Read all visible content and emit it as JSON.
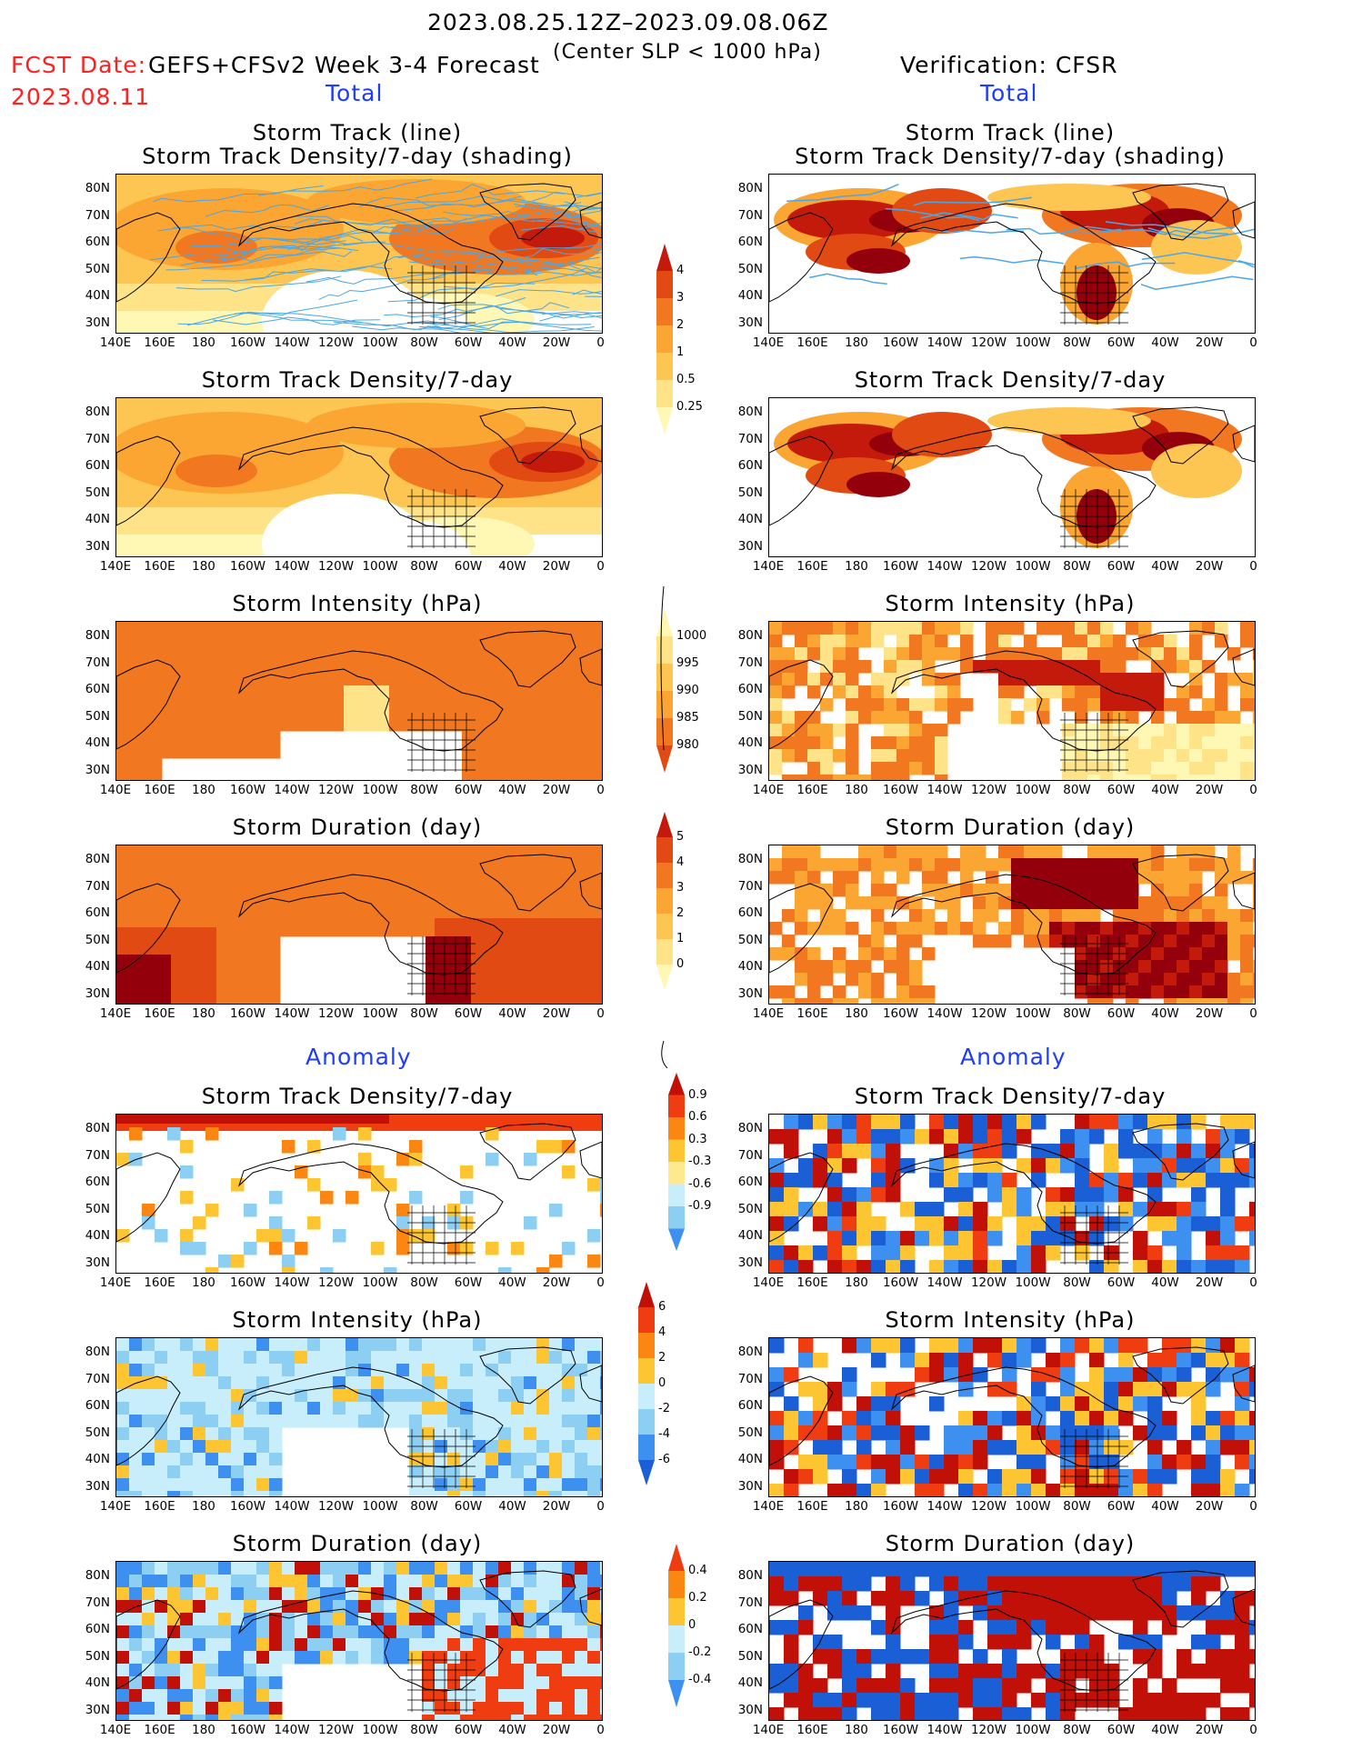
{
  "header": {
    "date_range": "2023.08.25.12Z–2023.09.08.06Z",
    "fcst_label": "FCST Date:",
    "fcst_date": "2023.08.11",
    "model": "GEFS+CFSv2 Week 3-4 Forecast",
    "criterion": "(Center SLP < 1000 hPa)",
    "verification": "Verification: CFSR"
  },
  "sections": {
    "total": "Total",
    "anomaly": "Anomaly"
  },
  "titles": {
    "track_line": "Storm Track (line)",
    "track_density_shading": "Storm Track Density/7-day (shading)",
    "track_density": "Storm Track Density/7-day",
    "intensity": "Storm Intensity (hPa)",
    "duration": "Storm Duration (day)"
  },
  "axes": {
    "lat_labels": [
      "80N",
      "70N",
      "60N",
      "50N",
      "40N",
      "30N"
    ],
    "lon_labels": [
      "140E",
      "160E",
      "180",
      "160W",
      "140W",
      "120W",
      "100W",
      "80W",
      "60W",
      "40W",
      "20W",
      "0"
    ]
  },
  "colorbars": {
    "density_total": [
      "4",
      "3",
      "2",
      "1",
      "0.5",
      "0.25"
    ],
    "intensity_total": [
      "1000",
      "995",
      "990",
      "985",
      "980"
    ],
    "duration_total": [
      "5",
      "4",
      "3",
      "2",
      "1",
      "0"
    ],
    "density_anom": [
      "0.9",
      "0.6",
      "0.3",
      "-0.3",
      "-0.6",
      "-0.9"
    ],
    "intensity_anom": [
      "6",
      "4",
      "2",
      "0",
      "-2",
      "-4",
      "-6"
    ],
    "duration_anom": [
      "0.4",
      "0.2",
      "0",
      "-0.2",
      "-0.4"
    ]
  },
  "colors": {
    "total_scale": [
      "#fff7b4",
      "#ffe389",
      "#fdc653",
      "#fba532",
      "#f17820",
      "#e14a12",
      "#c41a0c",
      "#93000b"
    ],
    "anom_scale": [
      "#1b5fd6",
      "#3d8ff0",
      "#8ccff3",
      "#c9eefb",
      "#ffffff",
      "#ffe98f",
      "#fdc532",
      "#fb8712",
      "#ef3c10",
      "#c01008"
    ],
    "track_line": "#4aa7e8",
    "title_red": "#ff2020",
    "title_blue": "#1e3cff"
  }
}
